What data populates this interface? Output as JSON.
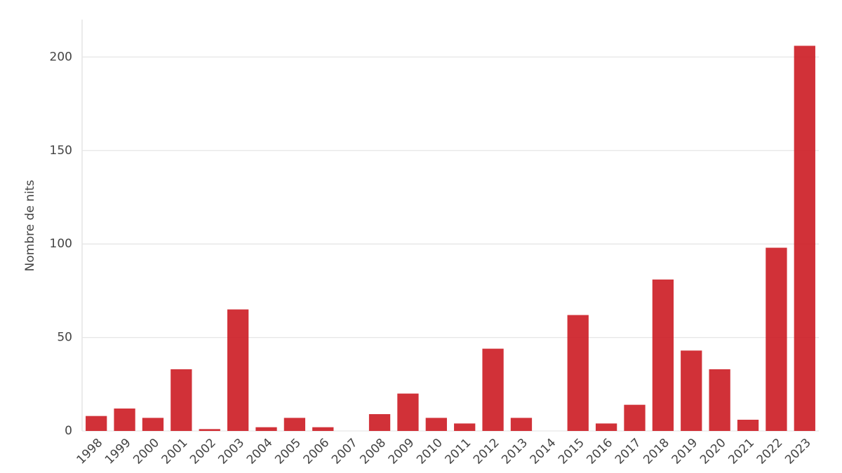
{
  "chart_data": {
    "type": "bar",
    "y_label": "Nombre de nits",
    "categories": [
      "1998",
      "1999",
      "2000",
      "2001",
      "2002",
      "2003",
      "2004",
      "2005",
      "2006",
      "2007",
      "2008",
      "2009",
      "2010",
      "2011",
      "2012",
      "2013",
      "2014",
      "2015",
      "2016",
      "2017",
      "2018",
      "2019",
      "2020",
      "2021",
      "2022",
      "2023"
    ],
    "values": [
      8,
      12,
      7,
      33,
      1,
      65,
      2,
      7,
      2,
      0,
      9,
      20,
      7,
      4,
      44,
      7,
      0,
      62,
      4,
      14,
      81,
      43,
      33,
      6,
      98,
      206
    ],
    "color": "#cd1f27",
    "ylim": [
      0,
      220
    ],
    "yticks": [
      0,
      50,
      100,
      150,
      200
    ],
    "grid": true
  }
}
